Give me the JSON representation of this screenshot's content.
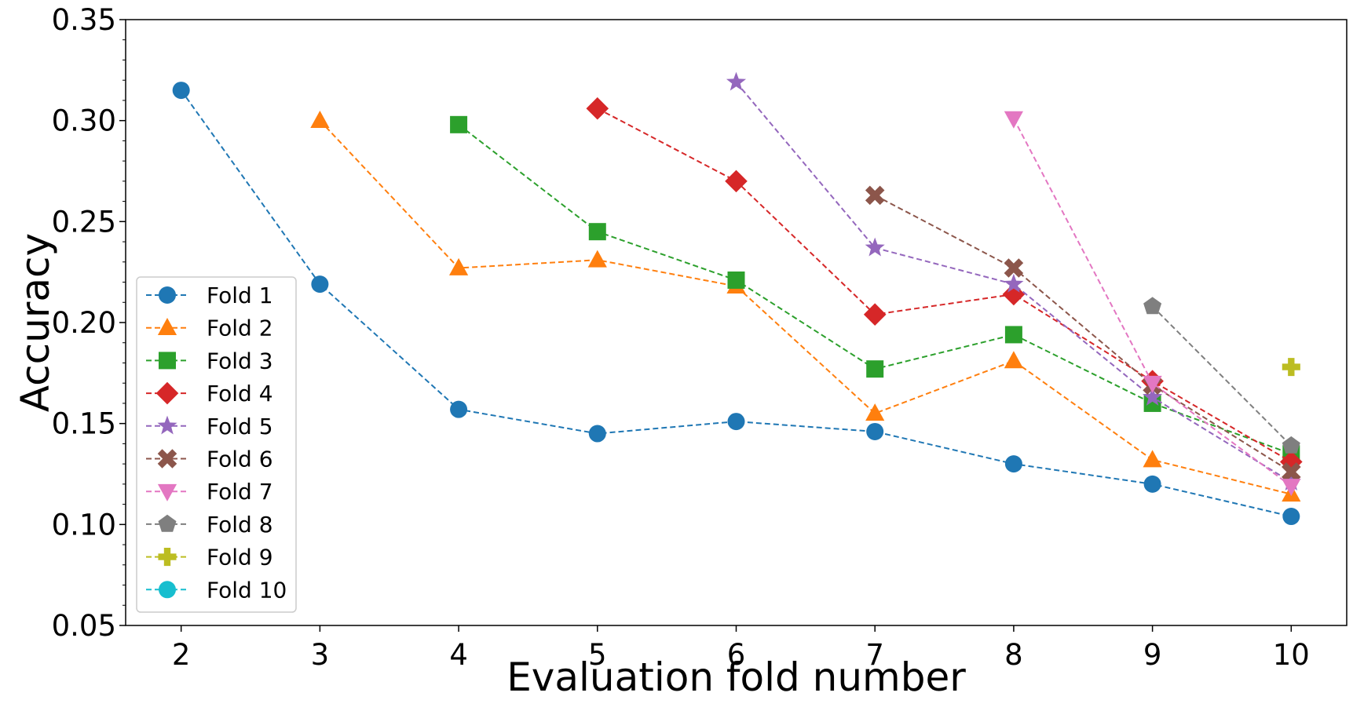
{
  "chart_data": {
    "type": "line",
    "xlabel": "Evaluation fold number",
    "ylabel": "Accuracy",
    "xlim": [
      1.6,
      10.4
    ],
    "ylim": [
      0.05,
      0.35
    ],
    "x_ticks": [
      2,
      3,
      4,
      5,
      6,
      7,
      8,
      9,
      10
    ],
    "y_ticks": [
      0.05,
      0.1,
      0.15,
      0.2,
      0.25,
      0.3,
      0.35
    ],
    "y_tick_labels": [
      "0.05",
      "0.10",
      "0.15",
      "0.20",
      "0.25",
      "0.30",
      "0.35"
    ],
    "grid": false,
    "legend_position": "lower-left",
    "series": [
      {
        "name": "Fold 1",
        "color": "#1f77b4",
        "marker": "circle",
        "x": [
          2,
          3,
          4,
          5,
          6,
          7,
          8,
          9,
          10
        ],
        "values": [
          0.315,
          0.219,
          0.157,
          0.145,
          0.151,
          0.146,
          0.13,
          0.12,
          0.104
        ]
      },
      {
        "name": "Fold 2",
        "color": "#ff7f0e",
        "marker": "triangle-up",
        "x": [
          3,
          4,
          5,
          6,
          7,
          8,
          9,
          10
        ],
        "values": [
          0.3,
          0.227,
          0.231,
          0.218,
          0.155,
          0.181,
          0.132,
          0.115
        ]
      },
      {
        "name": "Fold 3",
        "color": "#2ca02c",
        "marker": "square",
        "x": [
          4,
          5,
          6,
          7,
          8,
          9,
          10
        ],
        "values": [
          0.298,
          0.245,
          0.221,
          0.177,
          0.194,
          0.16,
          0.135
        ]
      },
      {
        "name": "Fold 4",
        "color": "#d62728",
        "marker": "diamond",
        "x": [
          5,
          6,
          7,
          8,
          9,
          10
        ],
        "values": [
          0.306,
          0.27,
          0.204,
          0.214,
          0.171,
          0.131
        ]
      },
      {
        "name": "Fold 5",
        "color": "#9467bd",
        "marker": "star",
        "x": [
          6,
          7,
          8,
          9,
          10
        ],
        "values": [
          0.319,
          0.237,
          0.219,
          0.163,
          0.121
        ]
      },
      {
        "name": "Fold 6",
        "color": "#8c564b",
        "marker": "x",
        "x": [
          7,
          8,
          9,
          10
        ],
        "values": [
          0.263,
          0.227,
          0.169,
          0.126
        ]
      },
      {
        "name": "Fold 7",
        "color": "#e377c2",
        "marker": "triangle-down",
        "x": [
          8,
          9,
          10
        ],
        "values": [
          0.301,
          0.17,
          0.119
        ]
      },
      {
        "name": "Fold 8",
        "color": "#7f7f7f",
        "marker": "pentagon",
        "x": [
          9,
          10
        ],
        "values": [
          0.208,
          0.139
        ]
      },
      {
        "name": "Fold 9",
        "color": "#bcbd22",
        "marker": "plus",
        "x": [
          10
        ],
        "values": [
          0.178
        ]
      },
      {
        "name": "Fold 10",
        "color": "#17becf",
        "marker": "circle",
        "x": [],
        "values": []
      }
    ]
  }
}
